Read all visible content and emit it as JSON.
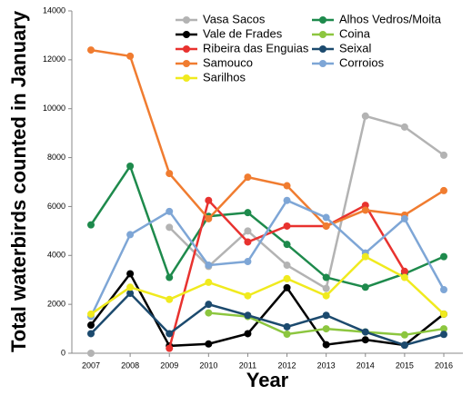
{
  "chart_data": {
    "type": "line",
    "y_label": "Total waterbirds counted in January",
    "x_label": "Year",
    "categories": [
      "2007",
      "2008",
      "2009",
      "2010",
      "2011",
      "2012",
      "2013",
      "2014",
      "2015",
      "2016"
    ],
    "ylim": [
      0,
      14000
    ],
    "yticks": [
      0,
      2000,
      4000,
      6000,
      8000,
      10000,
      12000,
      14000
    ],
    "series": [
      {
        "name": "Vasa Sacos",
        "color": "#b3b3b3",
        "values": [
          0,
          null,
          5150,
          3550,
          5000,
          3600,
          2650,
          9700,
          9250,
          8100
        ]
      },
      {
        "name": "Alhos Vedros/Moita",
        "color": "#1e8a4c",
        "values": [
          5250,
          7650,
          3100,
          5600,
          5750,
          4450,
          3100,
          2700,
          3250,
          3950
        ]
      },
      {
        "name": "Vale de Frades",
        "color": "#000000",
        "values": [
          1150,
          3250,
          300,
          380,
          800,
          2680,
          350,
          550,
          330,
          1600
        ]
      },
      {
        "name": "Coina",
        "color": "#8cc63f",
        "values": [
          null,
          null,
          null,
          1650,
          1500,
          780,
          1000,
          870,
          750,
          1000
        ]
      },
      {
        "name": "Ribeira das Enguias",
        "color": "#e8322f",
        "values": [
          null,
          null,
          200,
          6250,
          4550,
          5200,
          5200,
          6050,
          3350,
          null
        ]
      },
      {
        "name": "Seixal",
        "color": "#1c4a6e",
        "values": [
          800,
          2450,
          800,
          2000,
          1550,
          1080,
          1550,
          870,
          330,
          770
        ]
      },
      {
        "name": "Samouco",
        "color": "#f07c30",
        "values": [
          12400,
          12150,
          7350,
          5500,
          7200,
          6850,
          5200,
          5850,
          5650,
          6650
        ]
      },
      {
        "name": "Corroios",
        "color": "#7ea6d6",
        "values": [
          1500,
          4850,
          5800,
          3600,
          3750,
          6250,
          5550,
          4100,
          5500,
          2600
        ]
      },
      {
        "name": "Sarilhos",
        "color": "#f0ea1e",
        "values": [
          1600,
          2700,
          2200,
          2900,
          2350,
          3050,
          2350,
          3950,
          3100,
          1600
        ]
      }
    ]
  }
}
